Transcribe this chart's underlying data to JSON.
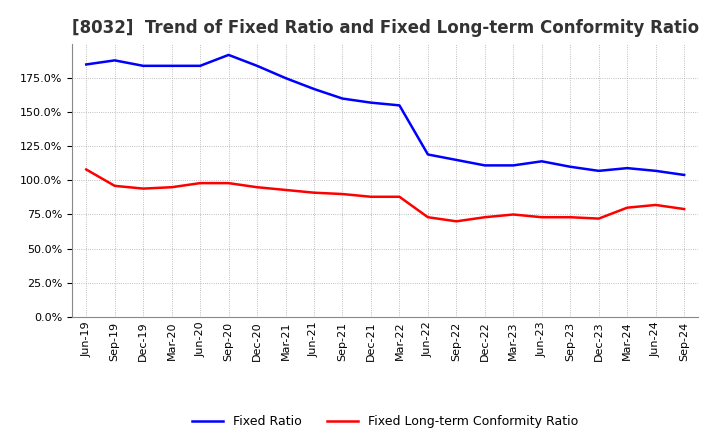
{
  "title": "[8032]  Trend of Fixed Ratio and Fixed Long-term Conformity Ratio",
  "x_labels": [
    "Jun-19",
    "Sep-19",
    "Dec-19",
    "Mar-20",
    "Jun-20",
    "Sep-20",
    "Dec-20",
    "Mar-21",
    "Jun-21",
    "Sep-21",
    "Dec-21",
    "Mar-22",
    "Jun-22",
    "Sep-22",
    "Dec-22",
    "Mar-23",
    "Jun-23",
    "Sep-23",
    "Dec-23",
    "Mar-24",
    "Jun-24",
    "Sep-24"
  ],
  "fixed_ratio": [
    185,
    188,
    184,
    184,
    184,
    192,
    184,
    175,
    167,
    160,
    157,
    155,
    119,
    115,
    111,
    111,
    114,
    110,
    107,
    109,
    107,
    104
  ],
  "fixed_lt_ratio": [
    108,
    96,
    94,
    95,
    98,
    98,
    95,
    93,
    91,
    90,
    88,
    88,
    73,
    70,
    73,
    75,
    73,
    73,
    72,
    80,
    82,
    79
  ],
  "fixed_ratio_color": "#0000FF",
  "fixed_lt_ratio_color": "#FF0000",
  "ylim": [
    0,
    200
  ],
  "yticks": [
    0,
    25,
    50,
    75,
    100,
    125,
    150,
    175
  ],
  "background_color": "#FFFFFF",
  "grid_color": "#AAAAAA",
  "title_fontsize": 12,
  "tick_fontsize": 8,
  "legend_fontsize": 9
}
